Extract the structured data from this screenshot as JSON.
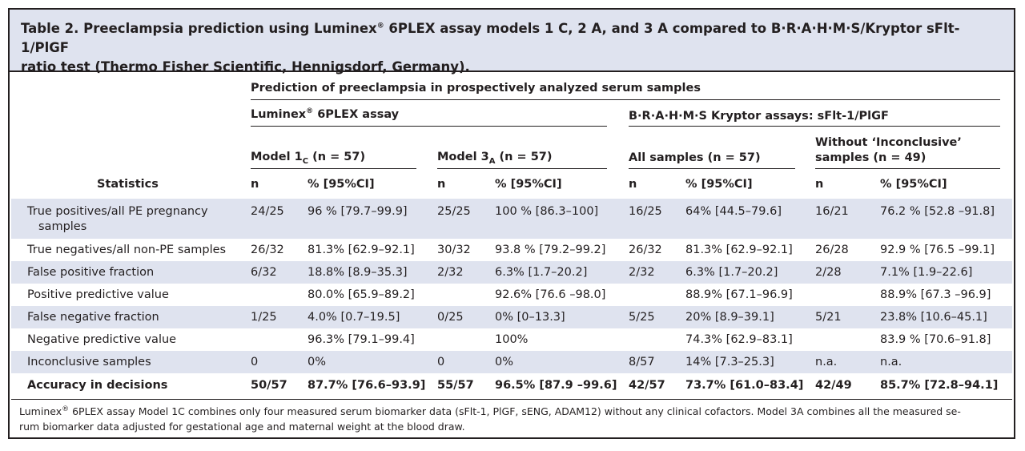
{
  "title": {
    "label": "Table 2.",
    "line1_pre": "Preeclampsia prediction using Luminex",
    "line1_sup": "®",
    "line1_post": " 6PLEX assay models 1 C, 2 A, and 3 A compared to B·R·A·H·M·S/Kryptor sFlt-1/PlGF",
    "line2": "ratio test (Thermo Fisher Scientific, Hennigsdorf, Germany)."
  },
  "header": {
    "prediction": "Prediction of preeclampsia in prospectively analyzed serum samples",
    "luminex_pre": "Luminex",
    "luminex_sup": "®",
    "luminex_post": " 6PLEX assay",
    "brahms": "B·R·A·H·M·S Kryptor assays: sFlt-1/PlGF",
    "model1_pre": "Model 1",
    "model1_sub": "C",
    "model1_post": " (n = 57)",
    "model3_pre": "Model 3",
    "model3_sub": "A",
    "model3_post": " (n = 57)",
    "all_samples": "All samples (n = 57)",
    "without_line1": "Without ‘Inconclusive’",
    "without_line2": "samples (n = 49)",
    "statistics": "Statistics",
    "n": "n",
    "pct": "% [95%CI]"
  },
  "rows": [
    {
      "label": "True positives/all PE pregnancy",
      "label2": "samples",
      "c": [
        "24/25",
        "96 % [79.7–99.9]",
        "25/25",
        "100 % [86.3–100]",
        "16/25",
        "64% [44.5–79.6]",
        "16/21",
        "76.2 % [52.8 –91.8]"
      ]
    },
    {
      "label": "True negatives/all non-PE samples",
      "c": [
        "26/32",
        "81.3% [62.9–92.1]",
        "30/32",
        "93.8 % [79.2–99.2]",
        "26/32",
        "81.3% [62.9–92.1]",
        "26/28",
        "92.9 % [76.5 –99.1]"
      ]
    },
    {
      "label": "False positive fraction",
      "c": [
        "6/32",
        "18.8% [8.9–35.3]",
        "2/32",
        "6.3% [1.7–20.2]",
        "2/32",
        "6.3% [1.7–20.2]",
        "2/28",
        "7.1% [1.9–22.6]"
      ]
    },
    {
      "label": "Positive predictive value",
      "c": [
        "",
        "80.0% [65.9–89.2]",
        "",
        "92.6% [76.6 –98.0]",
        "",
        "88.9% [67.1–96.9]",
        "",
        "88.9% [67.3 –96.9]"
      ]
    },
    {
      "label": "False negative fraction",
      "c": [
        "1/25",
        "4.0% [0.7–19.5]",
        "0/25",
        "0% [0–13.3]",
        "5/25",
        "20% [8.9–39.1]",
        "5/21",
        "23.8% [10.6–45.1]"
      ]
    },
    {
      "label": "Negative predictive value",
      "c": [
        "",
        "96.3% [79.1–99.4]",
        "",
        "100%",
        "",
        "74.3% [62.9–83.1]",
        "",
        "83.9 % [70.6–91.8]"
      ]
    },
    {
      "label": "Inconclusive samples",
      "c": [
        "0",
        "0%",
        "0",
        "0%",
        "8/57",
        "14% [7.3–25.3]",
        "n.a.",
        "n.a."
      ]
    },
    {
      "label": "Accuracy in decisions",
      "bold": true,
      "c": [
        "50/57",
        "87.7% [76.6–93.9]",
        "55/57",
        "96.5% [87.9 –99.6]",
        "42/57",
        "73.7% [61.0–83.4]",
        "42/49",
        "85.7% [72.8–94.1]"
      ]
    }
  ],
  "footnote": {
    "pre": "Luminex",
    "sup": "®",
    "line1": " 6PLEX assay Model 1C combines only four measured serum biomarker data (sFlt-1, PlGF, sENG, ADAM12) without any clinical cofactors. Model 3A combines all the measured se-",
    "line2": "rum biomarker data adjusted for gestational age and maternal weight at the blood draw."
  }
}
